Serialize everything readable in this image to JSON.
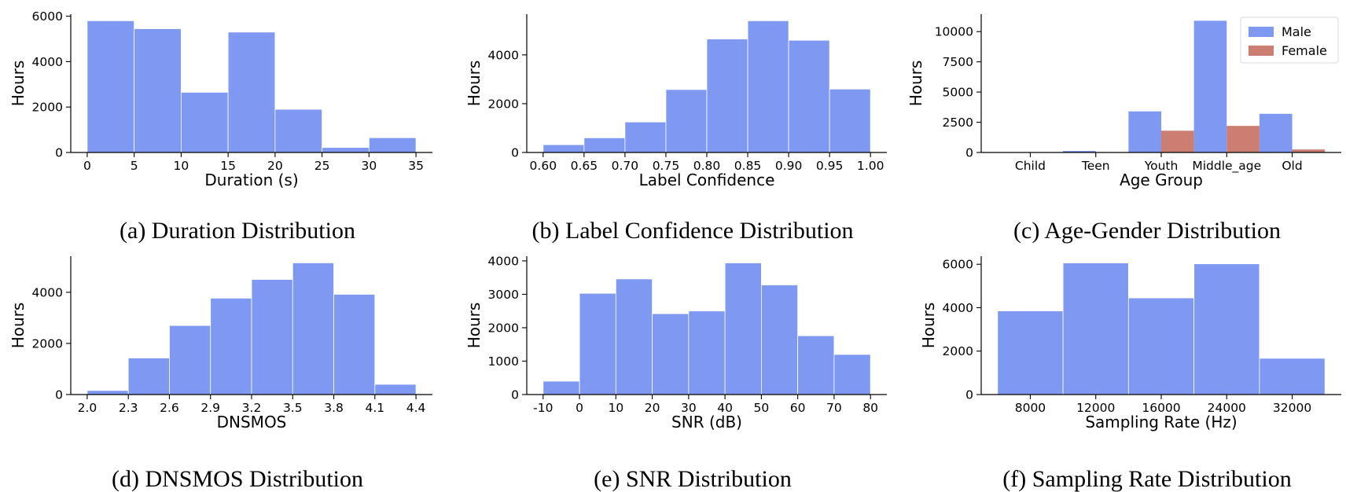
{
  "colors": {
    "male": "#7f98f2",
    "female": "#cd7e73",
    "axis": "#000000"
  },
  "chart_data": [
    {
      "type": "bar",
      "xlabel": "Duration (s)",
      "ylabel": "Hours",
      "caption": "(a) Duration Distribution",
      "bin_edges": [
        0,
        5,
        10,
        15,
        20,
        25,
        30,
        35
      ],
      "values": [
        5800,
        5450,
        2650,
        5300,
        1900,
        220,
        650
      ],
      "xlim": [
        -1.75,
        36.75
      ],
      "ylim": [
        0,
        6090
      ],
      "xticks": [
        0,
        5,
        10,
        15,
        20,
        25,
        30,
        35
      ],
      "xtick_labels": [
        "0",
        "5",
        "10",
        "15",
        "20",
        "25",
        "30",
        "35"
      ],
      "yticks": [
        0,
        2000,
        4000,
        6000
      ],
      "ytick_labels": [
        "0",
        "2000",
        "4000",
        "6000"
      ]
    },
    {
      "type": "bar",
      "xlabel": "Label Confidence",
      "ylabel": "Hours",
      "caption": "(b) Label Confidence Distribution",
      "bin_edges": [
        0.6,
        0.65,
        0.7,
        0.75,
        0.8,
        0.85,
        0.9,
        0.95,
        1.0
      ],
      "values": [
        320,
        600,
        1250,
        2580,
        4650,
        5400,
        4600,
        2600
      ],
      "xlim": [
        0.58,
        1.02
      ],
      "ylim": [
        0,
        5670
      ],
      "xticks": [
        0.6,
        0.65,
        0.7,
        0.75,
        0.8,
        0.85,
        0.9,
        0.95,
        1.0
      ],
      "xtick_labels": [
        "0.60",
        "0.65",
        "0.70",
        "0.75",
        "0.80",
        "0.85",
        "0.90",
        "0.95",
        "1.00"
      ],
      "yticks": [
        0,
        2000,
        4000
      ],
      "ytick_labels": [
        "0",
        "2000",
        "4000"
      ]
    },
    {
      "type": "grouped-bar",
      "xlabel": "Age Group",
      "ylabel": "Hours",
      "caption": "(c) Age-Gender Distribution",
      "categories": [
        "Child",
        "Teen",
        "Youth",
        "Middle_age",
        "Old"
      ],
      "series": [
        {
          "name": "Male",
          "values": [
            20,
            130,
            3400,
            10900,
            3200
          ]
        },
        {
          "name": "Female",
          "values": [
            20,
            30,
            1800,
            2200,
            250
          ]
        }
      ],
      "legend_position": "top-right",
      "xlim": [
        -0.75,
        4.75
      ],
      "ylim": [
        0,
        11445
      ],
      "yticks": [
        0,
        2500,
        5000,
        7500,
        10000
      ],
      "ytick_labels": [
        "0",
        "2500",
        "5000",
        "7500",
        "10000"
      ]
    },
    {
      "type": "bar",
      "xlabel": "DNSMOS",
      "ylabel": "Hours",
      "caption": "(d) DNSMOS Distribution",
      "bin_edges": [
        2.0,
        2.3,
        2.6,
        2.9,
        3.2,
        3.5,
        3.8,
        4.1,
        4.4
      ],
      "values": [
        160,
        1430,
        2700,
        3770,
        4500,
        5150,
        3920,
        400
      ],
      "xlim": [
        1.88,
        4.52
      ],
      "ylim": [
        0,
        5410
      ],
      "xticks": [
        2.0,
        2.3,
        2.6,
        2.9,
        3.2,
        3.5,
        3.8,
        4.1,
        4.4
      ],
      "xtick_labels": [
        "2.0",
        "2.3",
        "2.6",
        "2.9",
        "3.2",
        "3.5",
        "3.8",
        "4.1",
        "4.4"
      ],
      "yticks": [
        0,
        2000,
        4000
      ],
      "ytick_labels": [
        "0",
        "2000",
        "4000"
      ]
    },
    {
      "type": "bar",
      "xlabel": "SNR (dB)",
      "ylabel": "Hours",
      "caption": "(e) SNR Distribution",
      "bin_edges": [
        -10,
        0,
        10,
        20,
        30,
        40,
        50,
        60,
        70,
        80
      ],
      "values": [
        400,
        3030,
        3460,
        2420,
        2500,
        3940,
        3280,
        1760,
        1200
      ],
      "xlim": [
        -14.5,
        84.5
      ],
      "ylim": [
        0,
        4140
      ],
      "xticks": [
        -10,
        0,
        10,
        20,
        30,
        40,
        50,
        60,
        70,
        80
      ],
      "xtick_labels": [
        "-10",
        "0",
        "10",
        "20",
        "30",
        "40",
        "50",
        "60",
        "70",
        "80"
      ],
      "yticks": [
        0,
        1000,
        2000,
        3000,
        4000
      ],
      "ytick_labels": [
        "0",
        "1000",
        "2000",
        "3000",
        "4000"
      ]
    },
    {
      "type": "bar",
      "xlabel": "Sampling Rate (Hz)",
      "ylabel": "Hours",
      "caption": "(f) Sampling Rate Distribution",
      "bin_edges": [
        0,
        1,
        2,
        3,
        4,
        5
      ],
      "values": [
        3850,
        6060,
        4450,
        6020,
        1670
      ],
      "xlim": [
        -0.25,
        5.25
      ],
      "ylim": [
        0,
        6370
      ],
      "xticks": [
        0.5,
        1.5,
        2.5,
        3.5,
        4.5
      ],
      "xtick_labels": [
        "8000",
        "12000",
        "16000",
        "24000",
        "32000"
      ],
      "yticks": [
        0,
        2000,
        4000,
        6000
      ],
      "ytick_labels": [
        "0",
        "2000",
        "4000",
        "6000"
      ]
    }
  ]
}
